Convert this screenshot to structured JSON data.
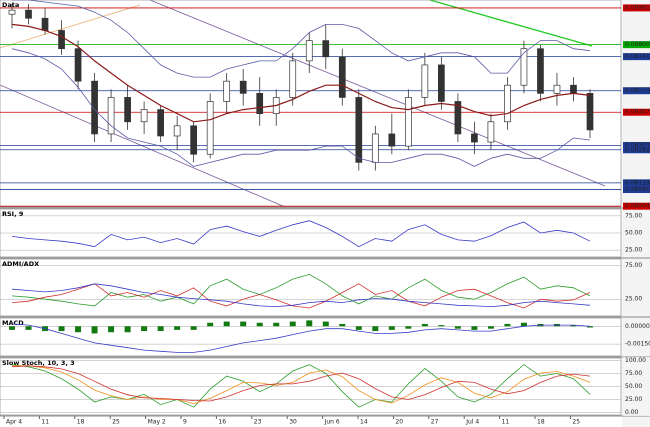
{
  "chart_data": [
    {
      "type": "candlestick",
      "title": "Data",
      "ylim": [
        0.08,
        0.0902
      ],
      "yticks": [
        0.08981,
        {
          "value": 0.088,
          "label": "0.08800"
        },
        0.08741,
        0.08573,
        0.08467,
        0.08303,
        0.08282,
        0.08119,
        0.08086,
        0.08004
      ],
      "tick_colors": [
        "#cc0000",
        "#00aa00",
        "#1e3c96",
        "#1e3c96",
        "#cc0000",
        "#1e3c96",
        "#1e3c96",
        "#1e3c96",
        "#1e3c96",
        "#cc0000"
      ],
      "up_color": "#ffffff",
      "down_color": "#333333",
      "open": [
        0.0895,
        0.0897,
        0.0893,
        0.0887,
        0.0878,
        0.0862,
        0.0836,
        0.0854,
        0.0842,
        0.0848,
        0.0835,
        0.084,
        0.0826,
        0.0852,
        0.0862,
        0.0856,
        0.0846,
        0.0854,
        0.0872,
        0.0882,
        0.0874,
        0.0854,
        0.0822,
        0.0836,
        0.083,
        0.0854,
        0.087,
        0.0852,
        0.0836,
        0.0832,
        0.0842,
        0.086,
        0.0878,
        0.0856,
        0.086,
        0.0856
      ],
      "high": [
        0.09,
        0.09,
        0.0898,
        0.0892,
        0.0882,
        0.0866,
        0.0858,
        0.086,
        0.0852,
        0.085,
        0.0845,
        0.0842,
        0.0856,
        0.0866,
        0.0868,
        0.0864,
        0.0858,
        0.0876,
        0.0886,
        0.089,
        0.0878,
        0.0858,
        0.084,
        0.0846,
        0.0858,
        0.0876,
        0.0874,
        0.0856,
        0.0842,
        0.0846,
        0.0864,
        0.0882,
        0.088,
        0.0866,
        0.0864,
        0.0858
      ],
      "low": [
        0.0888,
        0.089,
        0.0885,
        0.0875,
        0.0858,
        0.0832,
        0.0832,
        0.0838,
        0.0836,
        0.0832,
        0.0828,
        0.0822,
        0.0824,
        0.0846,
        0.085,
        0.084,
        0.084,
        0.085,
        0.0866,
        0.0868,
        0.085,
        0.0818,
        0.0818,
        0.0826,
        0.0828,
        0.085,
        0.0848,
        0.0832,
        0.0826,
        0.0828,
        0.0838,
        0.0856,
        0.0852,
        0.085,
        0.0852,
        0.0834
      ],
      "close": [
        0.0897,
        0.0893,
        0.0887,
        0.0878,
        0.0862,
        0.0836,
        0.0854,
        0.0842,
        0.0848,
        0.0835,
        0.084,
        0.0826,
        0.0852,
        0.0862,
        0.0856,
        0.0846,
        0.0854,
        0.0872,
        0.0882,
        0.0874,
        0.0854,
        0.0822,
        0.0836,
        0.083,
        0.0854,
        0.087,
        0.0852,
        0.0836,
        0.0832,
        0.0842,
        0.086,
        0.0878,
        0.0856,
        0.086,
        0.0856,
        0.0838
      ],
      "lines": [
        {
          "color": "#8b1a1a",
          "values": [
            0.089,
            0.0889,
            0.0887,
            0.0884,
            0.0879,
            0.0872,
            0.0866,
            0.086,
            0.0855,
            0.085,
            0.0846,
            0.0842,
            0.0843,
            0.0846,
            0.0848,
            0.0849,
            0.085,
            0.0853,
            0.0857,
            0.086,
            0.086,
            0.0856,
            0.0852,
            0.0849,
            0.0848,
            0.085,
            0.0851,
            0.085,
            0.0847,
            0.0845,
            0.0846,
            0.085,
            0.0853,
            0.0855,
            0.0856,
            0.0855
          ]
        },
        {
          "color": "#5a5aa8",
          "values": [
            0.0902,
            0.0902,
            0.0901,
            0.09,
            0.0899,
            0.0896,
            0.0892,
            0.0886,
            0.0878,
            0.087,
            0.0866,
            0.0864,
            0.0864,
            0.0868,
            0.087,
            0.0872,
            0.0872,
            0.0878,
            0.0886,
            0.089,
            0.089,
            0.0888,
            0.0882,
            0.0876,
            0.0872,
            0.0874,
            0.0876,
            0.0876,
            0.0874,
            0.0866,
            0.0866,
            0.0876,
            0.0882,
            0.0882,
            0.0878,
            0.0877
          ]
        },
        {
          "color": "#5a5aa8",
          "values": [
            0.0878,
            0.0876,
            0.0873,
            0.0868,
            0.0859,
            0.0848,
            0.084,
            0.0834,
            0.0832,
            0.083,
            0.0826,
            0.082,
            0.0822,
            0.0824,
            0.0826,
            0.0826,
            0.0828,
            0.0828,
            0.0828,
            0.083,
            0.083,
            0.0824,
            0.0822,
            0.0822,
            0.0824,
            0.0826,
            0.0826,
            0.0824,
            0.082,
            0.0824,
            0.0826,
            0.0824,
            0.0824,
            0.0828,
            0.0834,
            0.0833
          ]
        }
      ]
    },
    {
      "type": "line",
      "title": "RSI, 9",
      "ylim": [
        15,
        85
      ],
      "yticks": [
        {
          "value": 25,
          "label": "25.00"
        },
        {
          "value": 50,
          "label": "50.00"
        },
        {
          "value": 75,
          "label": "75.00"
        }
      ],
      "lines": [
        {
          "color": "#3a3ac8",
          "values": [
            45,
            42,
            40,
            38,
            35,
            30,
            48,
            40,
            44,
            36,
            42,
            34,
            55,
            60,
            52,
            45,
            54,
            62,
            68,
            58,
            45,
            30,
            42,
            38,
            55,
            62,
            48,
            40,
            38,
            46,
            58,
            66,
            50,
            54,
            50,
            38
          ]
        }
      ]
    },
    {
      "type": "line",
      "title": "ADMI/ADX",
      "ylim": [
        0,
        85
      ],
      "yticks": [
        {
          "value": 25,
          "label": "25.00"
        },
        {
          "value": 75,
          "label": "75.00"
        }
      ],
      "lines": [
        {
          "color": "#2e9e2e",
          "values": [
            30,
            28,
            25,
            22,
            18,
            15,
            35,
            28,
            32,
            22,
            28,
            18,
            45,
            55,
            40,
            32,
            42,
            55,
            62,
            48,
            30,
            18,
            30,
            25,
            42,
            55,
            38,
            28,
            25,
            35,
            48,
            58,
            40,
            45,
            42,
            30
          ]
        },
        {
          "color": "#d03030",
          "values": [
            20,
            22,
            28,
            32,
            40,
            48,
            30,
            35,
            28,
            38,
            30,
            42,
            22,
            15,
            25,
            32,
            24,
            15,
            12,
            22,
            35,
            48,
            32,
            38,
            22,
            15,
            28,
            38,
            40,
            30,
            20,
            12,
            25,
            22,
            24,
            35
          ]
        },
        {
          "color": "#3a3ac8",
          "values": [
            40,
            38,
            36,
            38,
            42,
            48,
            45,
            40,
            35,
            32,
            28,
            26,
            24,
            22,
            18,
            15,
            14,
            16,
            20,
            22,
            20,
            24,
            26,
            25,
            22,
            20,
            18,
            16,
            15,
            14,
            16,
            20,
            22,
            20,
            18,
            16
          ]
        }
      ]
    },
    {
      "type": "bar",
      "title": "MACD",
      "ylim": [
        -0.0025,
        0.0007
      ],
      "color": "#117a11",
      "yticks": [
        {
          "value": 0,
          "label": "0.00000"
        },
        {
          "value": -0.0015,
          "label": "-0.00150"
        }
      ],
      "values": [
        -0.0003,
        -0.0003,
        -0.0004,
        -0.0004,
        -0.0005,
        -0.0006,
        -0.0005,
        -0.0005,
        -0.0004,
        -0.0004,
        -0.0003,
        -0.0003,
        0.0003,
        0.0004,
        0.0004,
        0.0003,
        0.0003,
        0.0004,
        0.0005,
        0.0004,
        0.0002,
        -0.0003,
        -0.0004,
        -0.0003,
        -0.0002,
        0.0002,
        0.0001,
        -0.0002,
        -0.0003,
        -0.0002,
        0.0002,
        0.0003,
        0.0002,
        0.0002,
        0.0001,
        -0.0001
      ],
      "lines": [
        {
          "color": "#3a3ac8",
          "values": [
            0.0002,
            0.0001,
            -0.0002,
            -0.0006,
            -0.001,
            -0.0014,
            -0.0016,
            -0.0018,
            -0.002,
            -0.0021,
            -0.0022,
            -0.0022,
            -0.002,
            -0.0017,
            -0.0014,
            -0.0012,
            -0.001,
            -0.0007,
            -0.0004,
            -0.0002,
            -0.0002,
            -0.0004,
            -0.0006,
            -0.0006,
            -0.0005,
            -0.0003,
            -0.0002,
            -0.0003,
            -0.0004,
            -0.0004,
            -0.0002,
            0,
            0.0001,
            0.0001,
            0.0001,
            0
          ]
        }
      ]
    },
    {
      "type": "line",
      "title": "Slow Stoch, 10, 3, 3",
      "ylim": [
        -5,
        105
      ],
      "yticks": [
        {
          "value": 0,
          "label": "0.00"
        },
        {
          "value": 25,
          "label": "25.00"
        },
        {
          "value": 50,
          "label": "50.00"
        },
        {
          "value": 75,
          "label": "75.00"
        },
        {
          "value": 100,
          "label": "100.00"
        }
      ],
      "lines": [
        {
          "color": "#2e9e2e",
          "values": [
            92,
            88,
            80,
            65,
            45,
            20,
            30,
            25,
            35,
            15,
            25,
            10,
            45,
            70,
            60,
            40,
            55,
            80,
            92,
            75,
            40,
            10,
            25,
            20,
            55,
            85,
            60,
            30,
            20,
            35,
            65,
            92,
            70,
            75,
            65,
            35
          ]
        },
        {
          "color": "#f0901e",
          "values": [
            90,
            90,
            86,
            78,
            63,
            43,
            32,
            25,
            30,
            25,
            25,
            17,
            27,
            42,
            58,
            57,
            52,
            58,
            76,
            82,
            69,
            42,
            25,
            18,
            33,
            53,
            67,
            58,
            37,
            28,
            40,
            64,
            76,
            79,
            70,
            58
          ]
        },
        {
          "color": "#d03030",
          "values": [
            88,
            90,
            88,
            84,
            75,
            60,
            45,
            34,
            28,
            27,
            25,
            23,
            22,
            30,
            42,
            52,
            55,
            55,
            60,
            70,
            76,
            65,
            46,
            30,
            25,
            34,
            48,
            60,
            58,
            45,
            36,
            42,
            58,
            70,
            74,
            70
          ]
        }
      ]
    }
  ],
  "x_axis": {
    "labels": [
      "Apr 4",
      "11",
      "18",
      "25",
      "May 2",
      "9",
      "16",
      "23",
      "30",
      "Jun 6",
      "14",
      "20",
      "27",
      "Jul 4",
      "11",
      "18",
      "25"
    ]
  }
}
